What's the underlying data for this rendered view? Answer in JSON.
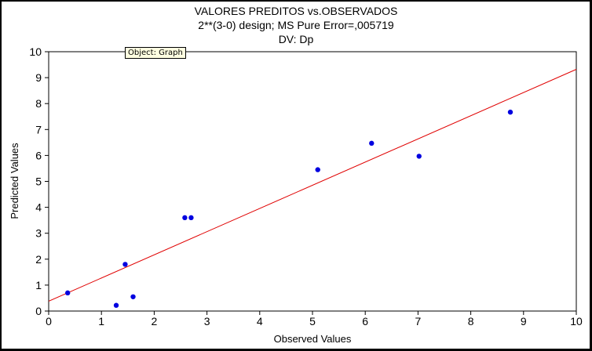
{
  "chart_data": {
    "type": "scatter",
    "title": "VALORES PREDITOS vs.OBSERVADOS",
    "subtitle": "2**(3-0) design; MS Pure Error=,005719",
    "subtitle2": "DV: Dp",
    "xlabel": "Observed Values",
    "ylabel": "Predicted Values",
    "xlim": [
      0,
      10
    ],
    "ylim": [
      0,
      10
    ],
    "xticks": [
      "0",
      "1",
      "2",
      "3",
      "4",
      "5",
      "6",
      "7",
      "8",
      "9",
      "10"
    ],
    "yticks": [
      "0",
      "1",
      "2",
      "3",
      "4",
      "5",
      "6",
      "7",
      "8",
      "9",
      "10"
    ],
    "points": [
      {
        "x": 0.36,
        "y": 0.7
      },
      {
        "x": 1.28,
        "y": 0.22
      },
      {
        "x": 1.45,
        "y": 1.8
      },
      {
        "x": 1.6,
        "y": 0.55
      },
      {
        "x": 2.58,
        "y": 3.6
      },
      {
        "x": 2.7,
        "y": 3.6
      },
      {
        "x": 5.1,
        "y": 5.45
      },
      {
        "x": 6.12,
        "y": 6.47
      },
      {
        "x": 7.02,
        "y": 5.97
      },
      {
        "x": 8.75,
        "y": 7.67
      }
    ],
    "fit_line": {
      "x": [
        0,
        10
      ],
      "y": [
        0.38,
        9.32
      ]
    },
    "point_color": "#0000e0",
    "line_color": "#e00000",
    "grid": false
  },
  "tooltip": {
    "text": "Object: Graph"
  }
}
